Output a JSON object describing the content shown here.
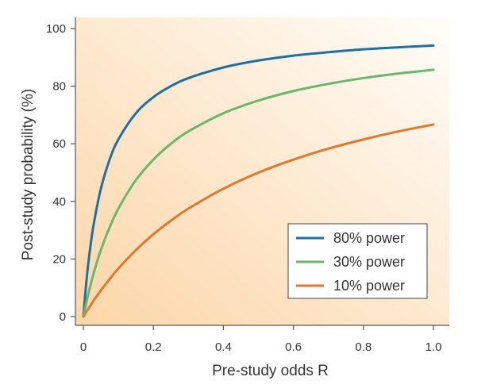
{
  "chart_data": {
    "type": "line",
    "title": "",
    "xlabel": "Pre-study odds R",
    "ylabel": "Post-study probability (%)",
    "xlim": [
      0,
      1.0
    ],
    "ylim": [
      0,
      100
    ],
    "x_ticks": [
      0,
      0.2,
      0.4,
      0.6,
      0.8,
      1.0
    ],
    "x_tick_labels": [
      "0",
      "0.2",
      "0.4",
      "0.6",
      "0.8",
      "1.0"
    ],
    "y_ticks": [
      0,
      20,
      40,
      60,
      80,
      100
    ],
    "y_tick_labels": [
      "0",
      "20",
      "40",
      "60",
      "80",
      "100"
    ],
    "grid": false,
    "legend_position": "bottom-right",
    "background": "gradient-orange-to-white",
    "series": [
      {
        "name": "80% power",
        "color": "#1f6fa3",
        "x": [
          0,
          0.01,
          0.02,
          0.03,
          0.05,
          0.075,
          0.1,
          0.15,
          0.2,
          0.25,
          0.3,
          0.4,
          0.5,
          0.6,
          0.7,
          0.8,
          0.9,
          1.0
        ],
        "y": [
          0,
          13.9,
          24.2,
          32.4,
          44.4,
          54.5,
          61.5,
          70.6,
          76.2,
          80.0,
          82.8,
          86.5,
          88.9,
          90.6,
          91.8,
          92.8,
          93.5,
          94.1
        ]
      },
      {
        "name": "30% power",
        "color": "#6db56d",
        "x": [
          0,
          0.01,
          0.02,
          0.03,
          0.05,
          0.075,
          0.1,
          0.15,
          0.2,
          0.25,
          0.3,
          0.4,
          0.5,
          0.6,
          0.7,
          0.8,
          0.9,
          1.0
        ],
        "y": [
          0,
          5.7,
          10.7,
          15.3,
          23.1,
          31.0,
          37.5,
          47.4,
          54.5,
          60.0,
          64.3,
          70.6,
          75.0,
          78.3,
          80.8,
          82.8,
          84.4,
          85.7
        ]
      },
      {
        "name": "10% power",
        "color": "#e0792e",
        "x": [
          0,
          0.01,
          0.02,
          0.03,
          0.05,
          0.075,
          0.1,
          0.15,
          0.2,
          0.25,
          0.3,
          0.4,
          0.5,
          0.6,
          0.7,
          0.8,
          0.9,
          1.0
        ],
        "y": [
          0,
          2.0,
          3.8,
          5.7,
          9.1,
          13.0,
          16.7,
          23.1,
          28.6,
          33.3,
          37.5,
          44.4,
          50.0,
          54.5,
          58.3,
          61.5,
          64.3,
          66.7
        ]
      }
    ]
  }
}
